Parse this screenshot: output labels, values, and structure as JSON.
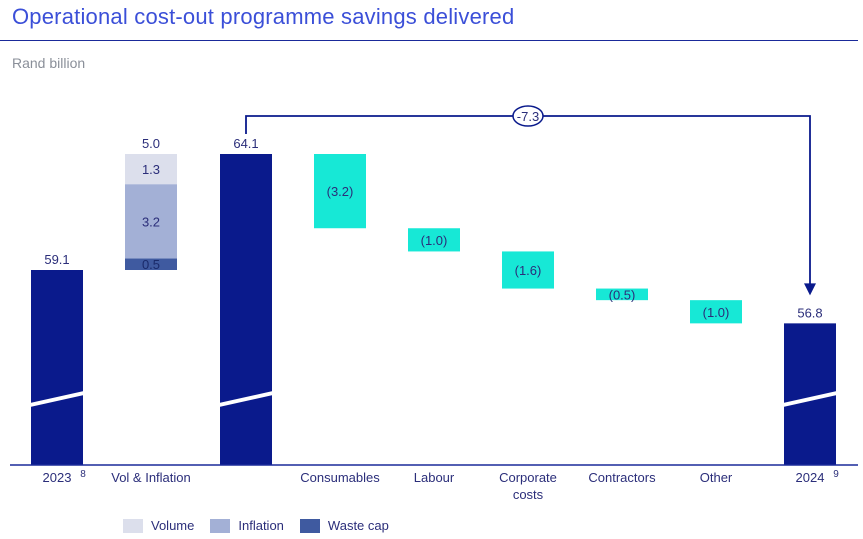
{
  "header": {
    "title": "Operational cost-out programme savings delivered",
    "subtitle": "Rand billion"
  },
  "colors": {
    "total_bar": "#0a1a8c",
    "saving_bar": "#17e8d6",
    "volume": "#dcdfec",
    "inflation": "#a3b0d6",
    "waste_cap": "#3f5aa0",
    "axis": "#1a2a9a",
    "text": "#2b2e7a"
  },
  "chart_data": {
    "type": "waterfall",
    "title": "Operational cost-out programme savings delivered",
    "ylabel": "Rand billion",
    "axis_break": true,
    "categories": [
      "2023",
      "Vol & Inflation",
      "",
      "Consumables",
      "Labour",
      "Corporate costs",
      "Contractors",
      "Other",
      "2024"
    ],
    "category_footnotes": {
      "2023": "8",
      "2024": "9"
    },
    "start_total": {
      "category": "2023",
      "value": 59.1,
      "label": "59.1"
    },
    "increase_stack": {
      "category": "Vol & Inflation",
      "total_label": "5.0",
      "components": [
        {
          "name": "Waste cap",
          "value": 0.5,
          "label": "0.5"
        },
        {
          "name": "Inflation",
          "value": 3.2,
          "label": "3.2"
        },
        {
          "name": "Volume",
          "value": 1.3,
          "label": "1.3"
        }
      ]
    },
    "subtotal": {
      "category": "",
      "value": 64.1,
      "label": "64.1"
    },
    "savings": [
      {
        "category": "Consumables",
        "value": -3.2,
        "label": "(3.2)"
      },
      {
        "category": "Labour",
        "value": -1.0,
        "label": "(1.0)"
      },
      {
        "category": "Corporate costs",
        "value": -1.6,
        "label": "(1.6)"
      },
      {
        "category": "Contractors",
        "value": -0.5,
        "label": "(0.5)"
      },
      {
        "category": "Other",
        "value": -1.0,
        "label": "(1.0)"
      }
    ],
    "end_total": {
      "category": "2024",
      "value": 56.8,
      "label": "56.8"
    },
    "bridge_annotation": {
      "value": -7.3,
      "label": "-7.3",
      "from": "64.1",
      "to": "2024"
    },
    "legend": [
      "Volume",
      "Inflation",
      "Waste cap"
    ],
    "legend_position": "bottom-left"
  }
}
